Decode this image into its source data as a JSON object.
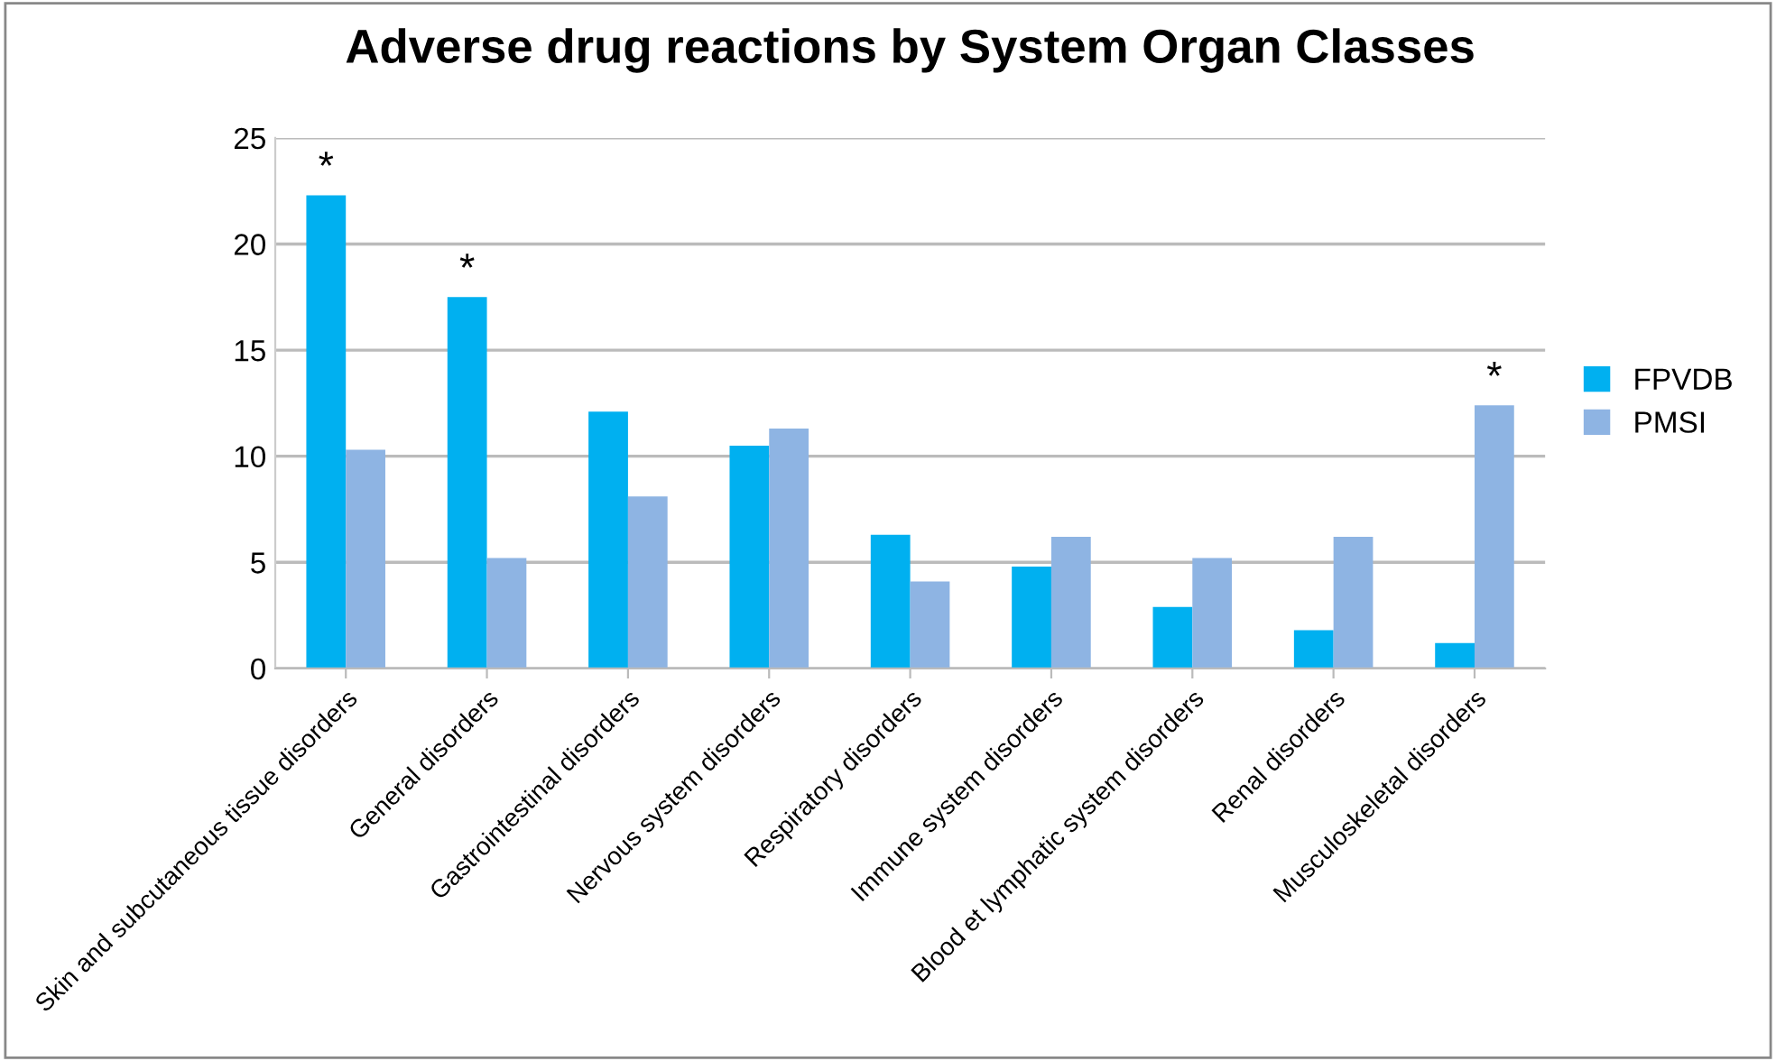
{
  "chart_data": {
    "type": "bar",
    "title": "Adverse drug reactions by System Organ Classes",
    "categories": [
      "Skin and subcutaneous tissue disorders",
      "General disorders",
      "Gastrointestinal disorders",
      "Nervous system disorders",
      "Respiratory disorders",
      "Immune system disorders",
      "Blood et lymphatic system disorders",
      "Renal disorders",
      "Musculoskeletal disorders"
    ],
    "series": [
      {
        "name": "FPVDB",
        "color": "#00b0f0",
        "values": [
          22.3,
          17.5,
          12.1,
          10.5,
          6.3,
          4.8,
          2.9,
          1.8,
          1.2
        ]
      },
      {
        "name": "PMSI",
        "color": "#8eb4e3",
        "values": [
          10.3,
          5.2,
          8.1,
          11.3,
          4.1,
          6.2,
          5.2,
          6.2,
          12.4
        ]
      }
    ],
    "annotations": [
      {
        "text": "*",
        "x": "Skin and subcutaneous tissue disorders",
        "y": 22.3
      },
      {
        "text": "*",
        "x": "General disorders",
        "y": 17.5
      },
      {
        "text": "*",
        "x": "Musculoskeletal disorders",
        "y": 12.4
      }
    ],
    "ylim": [
      0,
      25
    ],
    "yticks": [
      0,
      5,
      10,
      15,
      20,
      25
    ],
    "grid": "y",
    "legend": "right"
  }
}
